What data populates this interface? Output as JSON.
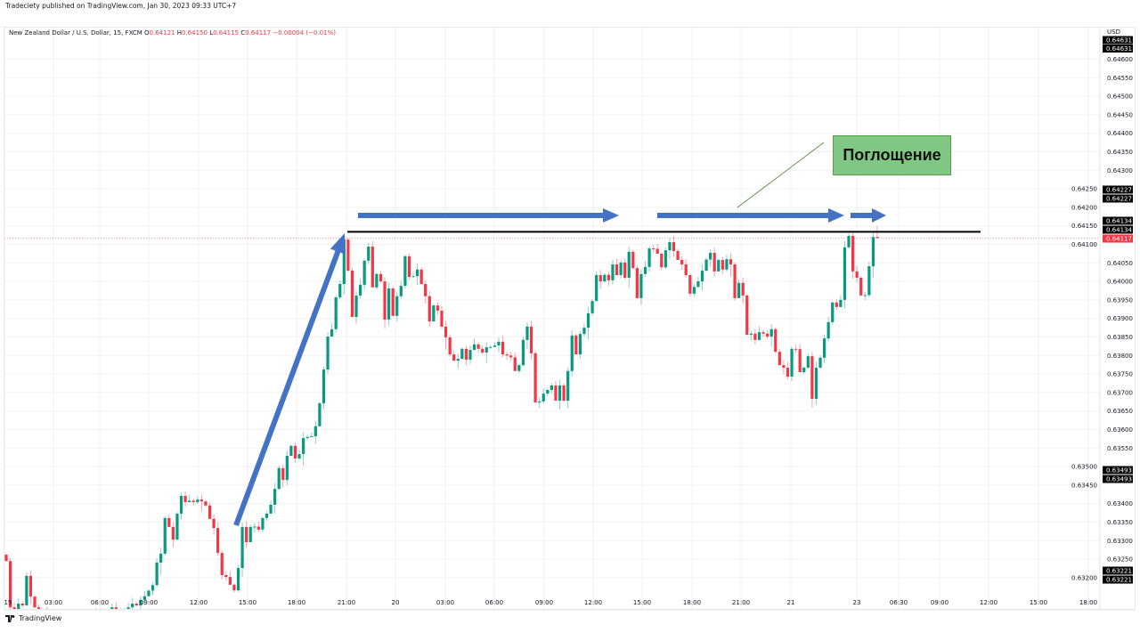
{
  "header": {
    "published": "Tradeciety published on TradingView.com, Jan 30, 2023 09:33 UTC+7",
    "symbol": "New Zealand Dollar / U.S. Dollar, 15, FXCM",
    "o_label": "O",
    "o": "0.64121",
    "h_label": "H",
    "h": "0.64150",
    "l_label": "L",
    "l": "0.64115",
    "c_label": "C",
    "c": "0.64117",
    "change": "−0.00004 (−0.01%)"
  },
  "footer": {
    "logo": "TradingView"
  },
  "annotation": {
    "label": "Поглощение",
    "fill": "#81c784"
  },
  "colors": {
    "up": "#089981",
    "down": "#f23645",
    "arrow": "#4472c4",
    "level": "#000000"
  },
  "chart_data": {
    "type": "candlestick",
    "currency": "USD",
    "ylim": [
      0.63175,
      0.64725
    ],
    "grid": true,
    "y_ticks": [
      "0.64600",
      "0.64550",
      "0.64500",
      "0.64450",
      "0.64400",
      "0.64350",
      "0.64300",
      "0.64250",
      "0.64200",
      "0.64150",
      "0.64100",
      "0.64050",
      "0.64000",
      "0.63950",
      "0.63900",
      "0.63850",
      "0.63800",
      "0.63750",
      "0.63700",
      "0.63650",
      "0.63600",
      "0.63550",
      "0.63500",
      "0.63450",
      "0.63400",
      "0.63350",
      "0.63300",
      "0.63250",
      "0.63200"
    ],
    "x_ticks": [
      "19",
      "03:00",
      "06:00",
      "09:00",
      "12:00",
      "15:00",
      "18:00",
      "21:00",
      "20",
      "03:00",
      "06:00",
      "09:00",
      "12:00",
      "15:00",
      "18:00",
      "21:00",
      "21",
      "23",
      "06:30",
      "09:00",
      "12:00",
      "15:00",
      "18:00"
    ],
    "price_tags": [
      {
        "value": "0.64631",
        "kind": "black"
      },
      {
        "value": "0.64631",
        "kind": "black"
      },
      {
        "value": "0.64227",
        "kind": "black"
      },
      {
        "value": "0.64227",
        "kind": "black"
      },
      {
        "value": "0.64134",
        "kind": "black"
      },
      {
        "value": "0.64134",
        "kind": "black"
      },
      {
        "value": "0.64117",
        "kind": "last"
      },
      {
        "value": "0.63493",
        "kind": "black"
      },
      {
        "value": "0.63493",
        "kind": "black"
      },
      {
        "value": "0.63221",
        "kind": "black"
      },
      {
        "value": "0.63221",
        "kind": "black"
      }
    ],
    "resistance_level": 0.64134,
    "last_price": 0.64117,
    "first_open": 0.63262,
    "closes": [
      0.63245,
      0.6312,
      0.6311,
      0.6313,
      0.63125,
      0.63205,
      0.63149,
      0.6312,
      0.631,
      0.6309,
      0.63105,
      0.63095,
      0.6308,
      0.6309,
      0.631,
      0.63085,
      0.6307,
      0.6308,
      0.63095,
      0.6309,
      0.631,
      0.6311,
      0.63105,
      0.63095,
      0.631,
      0.6311,
      0.6312,
      0.63115,
      0.63105,
      0.6311,
      0.6312,
      0.6313,
      0.63125,
      0.6314,
      0.6315,
      0.63165,
      0.6318,
      0.63241,
      0.63265,
      0.63361,
      0.63337,
      0.63303,
      0.63373,
      0.63421,
      0.63404,
      0.63408,
      0.63404,
      0.63411,
      0.63406,
      0.63395,
      0.63359,
      0.63334,
      0.63267,
      0.63207,
      0.63202,
      0.63181,
      0.63166,
      0.63226,
      0.63337,
      0.63296,
      0.63337,
      0.63338,
      0.6333,
      0.63361,
      0.63373,
      0.63397,
      0.6344,
      0.63496,
      0.63464,
      0.63529,
      0.63556,
      0.63522,
      0.63534,
      0.63577,
      0.6358,
      0.63582,
      0.63609,
      0.63671,
      0.63762,
      0.63851,
      0.63871,
      0.63957,
      0.63993,
      0.64113,
      0.64029,
      0.63904,
      0.63962,
      0.63991,
      0.64056,
      0.64094,
      0.63984,
      0.6402,
      0.64,
      0.63897,
      0.63981,
      0.63907,
      0.6396,
      0.63988,
      0.64068,
      0.64012,
      0.64014,
      0.64032,
      0.63993,
      0.6396,
      0.63892,
      0.63935,
      0.63921,
      0.63878,
      0.63849,
      0.63803,
      0.63786,
      0.63791,
      0.63818,
      0.63789,
      0.63815,
      0.6383,
      0.63818,
      0.63808,
      0.63822,
      0.63823,
      0.63827,
      0.63837,
      0.63803,
      0.638,
      0.63795,
      0.63758,
      0.63774,
      0.63842,
      0.63878,
      0.63806,
      0.63673,
      0.63676,
      0.63697,
      0.63707,
      0.63719,
      0.63678,
      0.63719,
      0.63678,
      0.63758,
      0.63854,
      0.63803,
      0.63858,
      0.63875,
      0.63914,
      0.63947,
      0.64017,
      0.64,
      0.64018,
      0.64003,
      0.64046,
      0.64017,
      0.64051,
      0.6401,
      0.6408,
      0.64036,
      0.63955,
      0.6402,
      0.64039,
      0.64089,
      0.64088,
      0.64075,
      0.64038,
      0.64084,
      0.64106,
      0.64082,
      0.64058,
      0.64046,
      0.64017,
      0.63967,
      0.63985,
      0.64,
      0.64029,
      0.64059,
      0.64077,
      0.64027,
      0.64058,
      0.64032,
      0.6406,
      0.64046,
      0.63955,
      0.63996,
      0.63962,
      0.63856,
      0.63859,
      0.63842,
      0.63863,
      0.63859,
      0.63851,
      0.63871,
      0.6381,
      0.63774,
      0.63767,
      0.63743,
      0.63818,
      0.63817,
      0.63755,
      0.63767,
      0.63798,
      0.63683,
      0.63767,
      0.63794,
      0.63846,
      0.6389,
      0.63943,
      0.63931,
      0.6395,
      0.64092,
      0.64123,
      0.64027,
      0.6401,
      0.63962,
      0.63963,
      0.64041,
      0.6412,
      0.64117
    ]
  }
}
